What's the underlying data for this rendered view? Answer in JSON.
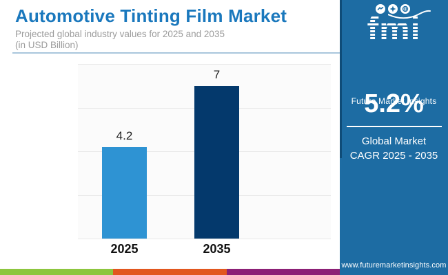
{
  "header": {
    "title": "Automotive Tinting Film Market",
    "subtitle_line1": "Projected global industry values for 2025 and 2035",
    "subtitle_line2": "(in USD Billion)"
  },
  "chart_data": {
    "type": "bar",
    "title": "Automotive Tinting Film Market",
    "subtitle": "Projected global industry values for 2025 and 2035 (in USD Billion)",
    "categories": [
      "2025",
      "2035"
    ],
    "values": [
      4.2,
      7
    ],
    "value_labels": [
      "4.2",
      "7"
    ],
    "bar_colors": [
      "#2E93D3",
      "#04396C"
    ],
    "unit": "USD Billion",
    "xlabel": "",
    "ylabel": "",
    "ylim": [
      0,
      8
    ],
    "gridline_step": 2,
    "grid": true,
    "legend_position": "none"
  },
  "sidebar": {
    "logo": {
      "brand": "fmi",
      "name": "Future Market Insights"
    },
    "cagr_value": "5.2%",
    "cagr_label_line1": "Global Market",
    "cagr_label_line2": "CAGR 2025 - 2035",
    "website": "www.futuremarketinsights.com",
    "background": "#1D6CA3"
  },
  "footer": {
    "stripe_colors": [
      "#8DC63F",
      "#E2571F",
      "#8C2076"
    ]
  },
  "colors": {
    "title_blue": "#1A78BD",
    "subtitle_gray": "#9B9B9B",
    "separator_blue": "#A9C6DC",
    "grid_gray": "#E8E8E8",
    "bar_2025": "#2E93D3",
    "bar_2035": "#04396C"
  }
}
